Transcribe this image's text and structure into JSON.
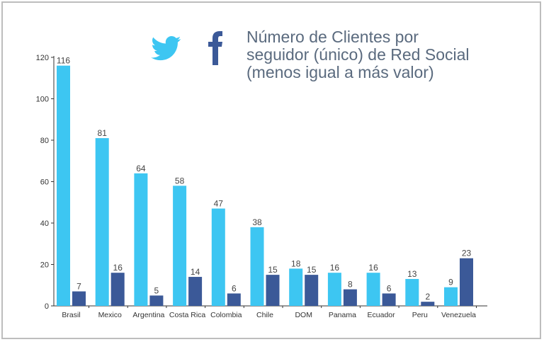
{
  "chart_data": {
    "type": "bar",
    "title_lines": [
      "Número de Clientes por",
      "seguidor (único) de Red Social",
      "(menos igual a más valor)"
    ],
    "categories": [
      "Brasil",
      "Mexico",
      "Argentina",
      "Costa Rica",
      "Colombia",
      "Chile",
      "DOM",
      "Panama",
      "Ecuador",
      "Peru",
      "Venezuela"
    ],
    "series": [
      {
        "name": "Twitter",
        "color": "#3dc6f2",
        "values": [
          116,
          81,
          64,
          58,
          47,
          38,
          18,
          16,
          16,
          13,
          9
        ]
      },
      {
        "name": "Facebook",
        "color": "#3b5998",
        "values": [
          7,
          16,
          5,
          14,
          6,
          15,
          15,
          8,
          6,
          2,
          23
        ]
      }
    ],
    "yticks": [
      0,
      20,
      40,
      60,
      80,
      100,
      120
    ],
    "ylim": [
      0,
      120
    ],
    "legend": [
      {
        "name": "Twitter",
        "icon": "twitter-bird-icon",
        "color": "#3dc6f2"
      },
      {
        "name": "Facebook",
        "icon": "facebook-f-icon",
        "color": "#3b5998"
      }
    ]
  }
}
